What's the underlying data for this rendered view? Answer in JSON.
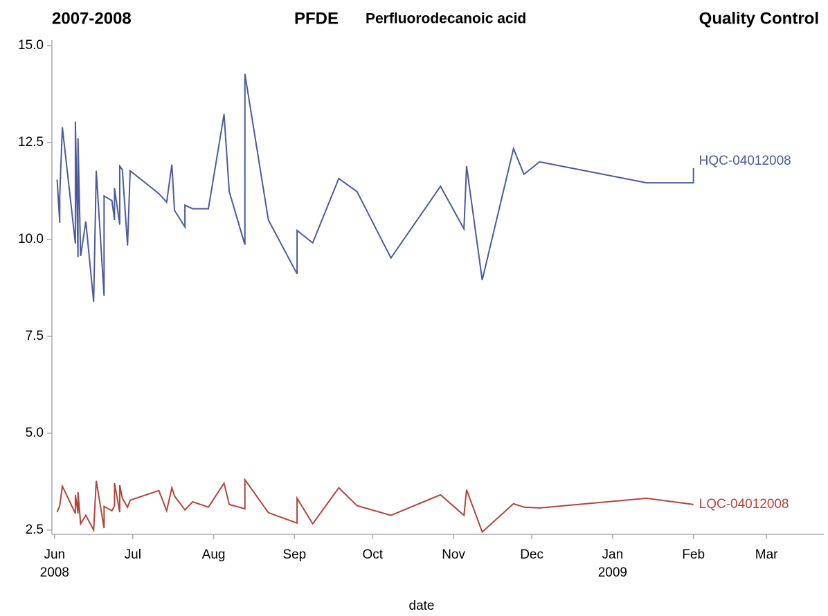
{
  "chart_data": {
    "type": "line",
    "title": "2007-2008",
    "subtitle": "PFDE",
    "compound": "Perfluorodecanoic acid",
    "panel_label": "Quality Control",
    "x_label": "date",
    "xlim": [
      "2008-05-31",
      "2009-03-23"
    ],
    "xticks": [
      {
        "value": "2008-06-01",
        "label": "Jun",
        "year": "2008"
      },
      {
        "value": "2008-07-01",
        "label": "Jul"
      },
      {
        "value": "2008-08-01",
        "label": "Aug"
      },
      {
        "value": "2008-09-01",
        "label": "Sep"
      },
      {
        "value": "2008-10-01",
        "label": "Oct"
      },
      {
        "value": "2008-11-01",
        "label": "Nov"
      },
      {
        "value": "2008-12-01",
        "label": "Dec"
      },
      {
        "value": "2009-01-01",
        "label": "Jan",
        "year": "2009"
      },
      {
        "value": "2009-02-01",
        "label": "Feb"
      },
      {
        "value": "2009-03-01",
        "label": "Mar"
      }
    ],
    "ylim": [
      2.39,
      15.14
    ],
    "yticks": [
      {
        "value": 15,
        "label": "15.0"
      },
      12.5,
      {
        "value": 10,
        "label": "10.0"
      },
      7.5,
      {
        "value": 5,
        "label": "5.0"
      },
      2.5
    ],
    "series": [
      {
        "name": "HQC-04012008",
        "color": "#4b5b9b",
        "x": [
          "2008-06-02",
          "2008-06-03",
          "2008-06-03",
          "2008-06-04",
          "2008-06-09",
          "2008-06-09",
          "2008-06-10",
          "2008-06-10",
          "2008-06-11",
          "2008-06-13",
          "2008-06-16",
          "2008-06-17",
          "2008-06-20",
          "2008-06-20",
          "2008-06-23",
          "2008-06-24",
          "2008-06-24",
          "2008-06-26",
          "2008-06-26",
          "2008-06-27",
          "2008-06-29",
          "2008-06-30",
          "2008-07-11",
          "2008-07-14",
          "2008-07-16",
          "2008-07-17",
          "2008-07-21",
          "2008-07-21",
          "2008-07-24",
          "2008-07-30",
          "2008-08-05",
          "2008-08-07",
          "2008-08-13",
          "2008-08-13",
          "2008-08-22",
          "2008-09-02",
          "2008-09-02",
          "2008-09-08",
          "2008-09-18",
          "2008-09-25",
          "2008-10-08",
          "2008-10-27",
          "2008-11-05",
          "2008-11-06",
          "2008-11-12",
          "2008-11-24",
          "2008-11-28",
          "2008-12-04",
          "2009-01-14",
          "2009-02-01",
          "2009-02-01"
        ],
        "values": [
          11.54,
          10.43,
          11.14,
          12.89,
          9.89,
          13.04,
          9.54,
          12.61,
          9.57,
          10.46,
          8.39,
          11.77,
          8.54,
          11.12,
          11.0,
          10.5,
          11.32,
          10.38,
          11.89,
          11.8,
          9.84,
          11.77,
          11.18,
          10.96,
          11.93,
          10.75,
          10.32,
          10.88,
          10.79,
          10.79,
          13.23,
          11.23,
          9.86,
          14.27,
          10.5,
          9.11,
          10.23,
          9.91,
          11.57,
          11.23,
          9.52,
          11.37,
          10.27,
          11.89,
          8.95,
          12.34,
          11.68,
          12.0,
          11.46,
          11.46,
          11.84
        ]
      },
      {
        "name": "LQC-04012008",
        "color": "#b0453a",
        "x": [
          "2008-06-02",
          "2008-06-03",
          "2008-06-04",
          "2008-06-09",
          "2008-06-09",
          "2008-06-10",
          "2008-06-10",
          "2008-06-11",
          "2008-06-13",
          "2008-06-16",
          "2008-06-17",
          "2008-06-20",
          "2008-06-20",
          "2008-06-23",
          "2008-06-24",
          "2008-06-24",
          "2008-06-26",
          "2008-06-26",
          "2008-06-27",
          "2008-06-29",
          "2008-06-30",
          "2008-07-11",
          "2008-07-14",
          "2008-07-16",
          "2008-07-17",
          "2008-07-21",
          "2008-07-24",
          "2008-07-30",
          "2008-08-05",
          "2008-08-07",
          "2008-08-13",
          "2008-08-13",
          "2008-08-22",
          "2008-09-02",
          "2008-09-02",
          "2008-09-08",
          "2008-09-18",
          "2008-09-25",
          "2008-10-08",
          "2008-10-27",
          "2008-11-05",
          "2008-11-06",
          "2008-11-12",
          "2008-11-24",
          "2008-11-28",
          "2008-12-04",
          "2009-01-14",
          "2009-02-01"
        ],
        "values": [
          2.96,
          3.13,
          3.63,
          2.93,
          3.41,
          2.93,
          3.48,
          2.66,
          2.88,
          2.5,
          3.77,
          2.55,
          3.11,
          3.0,
          3.13,
          3.71,
          2.96,
          3.66,
          3.32,
          3.09,
          3.27,
          3.52,
          3.0,
          3.59,
          3.38,
          3.02,
          3.23,
          3.09,
          3.71,
          3.16,
          3.05,
          3.8,
          2.95,
          2.68,
          3.32,
          2.66,
          3.59,
          3.13,
          2.88,
          3.41,
          2.88,
          3.54,
          2.45,
          3.18,
          3.09,
          3.07,
          3.32,
          3.16
        ]
      }
    ]
  }
}
